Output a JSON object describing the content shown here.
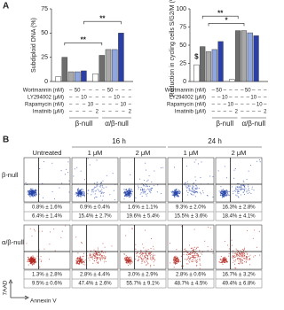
{
  "panels": [
    "A",
    "B"
  ],
  "treatments": {
    "rows": [
      {
        "label": "Wortmannin (nM)",
        "cells": [
          "–",
          "50",
          "–",
          "–",
          "–",
          "–",
          "50",
          "–",
          "–",
          "–"
        ]
      },
      {
        "label": "LY294002 (μM)",
        "cells": [
          "–",
          "–",
          "10",
          "–",
          "–",
          "–",
          "–",
          "10",
          "–",
          "–"
        ]
      },
      {
        "label": "Rapamycin (nM)",
        "cells": [
          "–",
          "–",
          "–",
          "10",
          "–",
          "–",
          "–",
          "–",
          "10",
          "–"
        ]
      },
      {
        "label": "Imatinib (μM)",
        "cells": [
          "–",
          "–",
          "–",
          "–",
          "2",
          "–",
          "–",
          "–",
          "–",
          "2"
        ]
      }
    ]
  },
  "chart_data": [
    {
      "type": "bar",
      "ylabel": "Subdiploid DNA (%)",
      "categories": [
        "β-null",
        "α/β-null"
      ],
      "series": [
        {
          "color": "#ffffff",
          "values": [
            5,
            8
          ]
        },
        {
          "color": "#6e6e6e",
          "values": [
            25,
            27
          ]
        },
        {
          "color": "#a9a9a9",
          "values": [
            10,
            33
          ]
        },
        {
          "color": "#8fa6df",
          "values": [
            10,
            33
          ]
        },
        {
          "color": "#2a3fa8",
          "values": [
            11,
            50
          ]
        }
      ],
      "ylim": [
        0,
        75
      ],
      "yticks": [
        0,
        25,
        50,
        75
      ],
      "annotations": [
        "**",
        "**"
      ]
    },
    {
      "type": "bar",
      "ylabel": "Reduction in cycling cells S/G2/M (%)",
      "categories": [
        "β-null",
        "α/β-null"
      ],
      "series": [
        {
          "color": "#ffffff",
          "values": [
            23,
            3
          ]
        },
        {
          "color": "#6e6e6e",
          "values": [
            48,
            70
          ]
        },
        {
          "color": "#a9a9a9",
          "values": [
            41,
            70
          ]
        },
        {
          "color": "#8fa6df",
          "values": [
            44,
            67
          ]
        },
        {
          "color": "#2a3fa8",
          "values": [
            55,
            63
          ]
        }
      ],
      "ylim": [
        0,
        100
      ],
      "yticks": [
        0,
        25,
        50,
        75,
        100
      ],
      "annotations": [
        "$",
        "*",
        "**"
      ]
    }
  ],
  "flow": {
    "times": [
      "16 h",
      "24 h"
    ],
    "columns": [
      "Untreated",
      "1 μM",
      "2 μM",
      "1 μM",
      "2 μM"
    ],
    "xlabel": "Annexin V",
    "ylabel": "7AAD",
    "rows": [
      {
        "label": "β-null",
        "upper": [
          "0.8% ± 1.6%",
          "0.9% ± 0.4%",
          "1.6% ± 1.1%",
          "9.3% ± 2.0%",
          "16.3% ± 2.8%"
        ],
        "lower": [
          "6.4% ± 1.4%",
          "15.4% ± 2.7%",
          "19.6% ± 5.4%",
          "15.5% ± 3.6%",
          "18.4% ± 4.1%"
        ]
      },
      {
        "label": "α/β-null",
        "upper": [
          "1.3% ± 2.8%",
          "2.8% ± 4.4%",
          "3.0% ± 2.9%",
          "2.8% ± 0.6%",
          "16.7% ± 3.2%"
        ],
        "lower": [
          "9.5% ± 0.6%",
          "47.4% ± 2.6%",
          "55.7% ± 9.1%",
          "48.7% ± 4.5%",
          "49.4% ± 6.8%"
        ]
      }
    ]
  }
}
